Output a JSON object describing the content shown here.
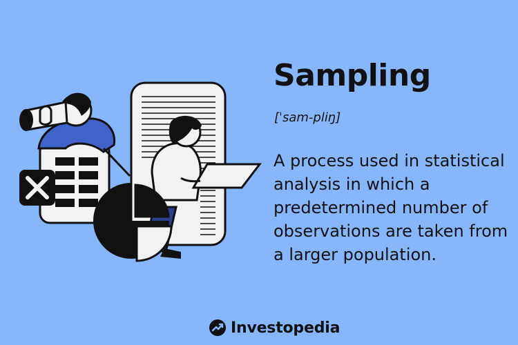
{
  "term": {
    "title": "Sampling",
    "pronunciation": "[ˈsam-pliŋ]",
    "definition": "A process used in statistical analysis in which a predetermined number of observations are taken from a larger population."
  },
  "brand": {
    "name": "Investopedia",
    "logo_icon": "investopedia-logo-icon"
  },
  "colors": {
    "background": "#87b7fb",
    "ink": "#111111",
    "paper": "#f2f2f2",
    "shirt_blue": "#3f63c9",
    "pants_navy": "#2c3e8c"
  }
}
